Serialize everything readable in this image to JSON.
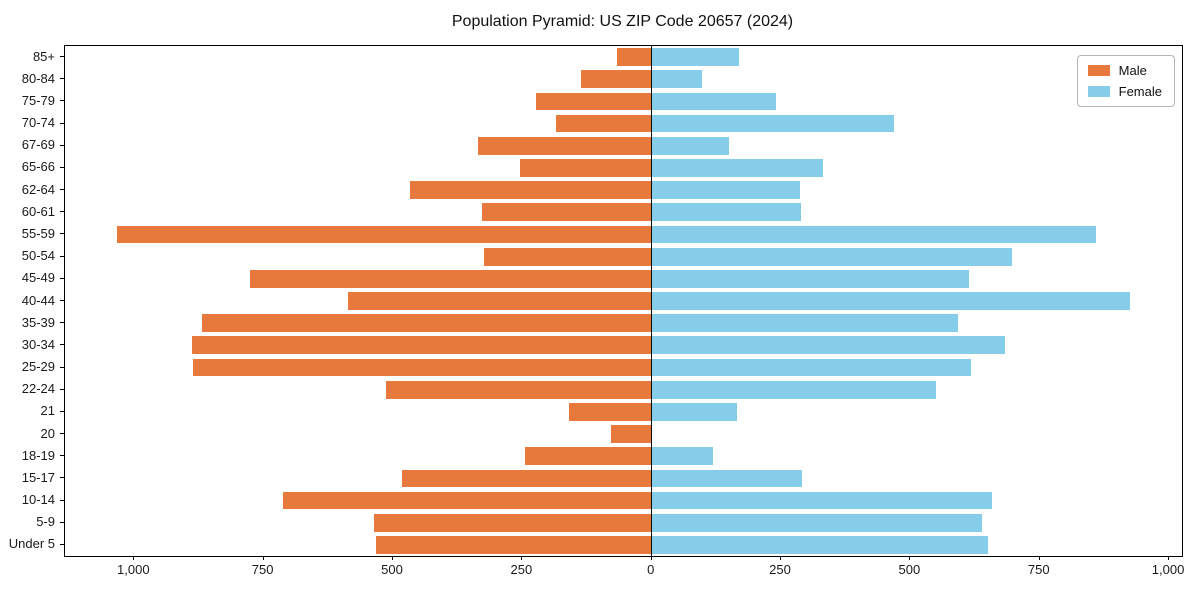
{
  "title": "Population Pyramid: US ZIP Code 20657 (2024)",
  "legend": {
    "items": [
      {
        "label": "Male",
        "color": "#e8793c"
      },
      {
        "label": "Female",
        "color": "#85cde9"
      }
    ]
  },
  "colors": {
    "male": "#e8793c",
    "female": "#85cde9",
    "axis": "#000000"
  },
  "chart_data": {
    "type": "bar",
    "subtype": "population-pyramid",
    "title": "Population Pyramid: US ZIP Code 20657 (2024)",
    "xlabel": "",
    "ylabel": "",
    "grid": false,
    "legend_position": "upper right",
    "categories": [
      "85+",
      "80-84",
      "75-79",
      "70-74",
      "67-69",
      "65-66",
      "62-64",
      "60-61",
      "55-59",
      "50-54",
      "45-49",
      "40-44",
      "35-39",
      "30-34",
      "25-29",
      "22-24",
      "21",
      "20",
      "18-19",
      "15-17",
      "10-14",
      "5-9",
      "Under 5"
    ],
    "series": [
      {
        "name": "Male",
        "side": "left",
        "color": "#e8793c",
        "values": [
          67,
          137,
          224,
          185,
          336,
          254,
          468,
          328,
          1033,
          325,
          776,
          587,
          870,
          888,
          886,
          513,
          160,
          79,
          245,
          482,
          713,
          536,
          533
        ]
      },
      {
        "name": "Female",
        "side": "right",
        "color": "#85cde9",
        "values": [
          168,
          97,
          241,
          468,
          149,
          332,
          286,
          289,
          859,
          697,
          613,
          925,
          593,
          683,
          618,
          550,
          165,
          0,
          118,
          291,
          657,
          639,
          650
        ]
      }
    ],
    "x_tick_values": [
      -1000,
      -750,
      -500,
      -250,
      0,
      250,
      500,
      750,
      1000
    ],
    "x_tick_labels": [
      "1,000",
      "750",
      "500",
      "250",
      "0",
      "250",
      "500",
      "750",
      "1,000"
    ],
    "xlim": [
      -1134,
      1025
    ]
  }
}
